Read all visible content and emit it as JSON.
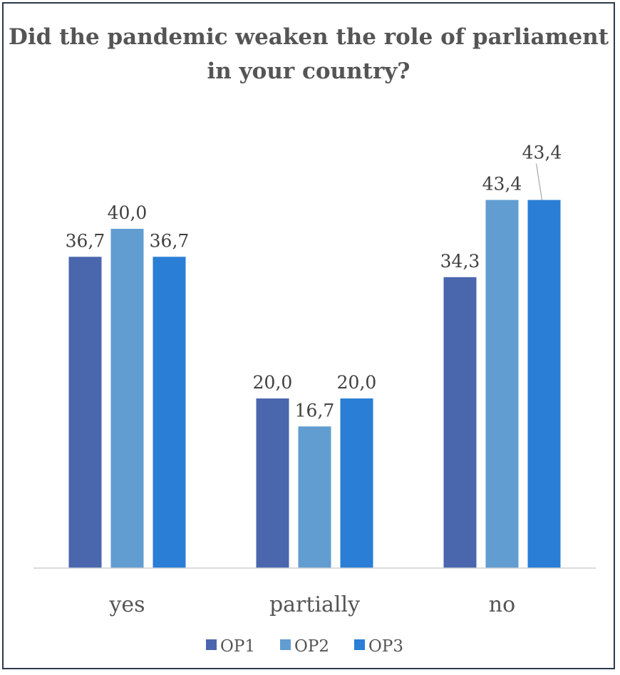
{
  "chart_data": {
    "type": "bar",
    "title": "Did the pandemic weaken the role of parliament in your country?",
    "categories": [
      "yes",
      "partially",
      "no"
    ],
    "series": [
      {
        "name": "OP1",
        "values": [
          36.7,
          20.0,
          34.3
        ],
        "labels": [
          "36,7",
          "20,0",
          "34,3"
        ],
        "color": "#4a66ad"
      },
      {
        "name": "OP2",
        "values": [
          40.0,
          16.7,
          43.4
        ],
        "labels": [
          "40,0",
          "16,7",
          "43,4"
        ],
        "color": "#619dd1"
      },
      {
        "name": "OP3",
        "values": [
          36.7,
          20.0,
          43.4
        ],
        "labels": [
          "36,7",
          "20,0",
          "43,4"
        ],
        "color": "#2a7ed6"
      }
    ],
    "ylim": [
      0,
      60
    ],
    "grid": false,
    "legend": "bottom",
    "xlabel": "",
    "ylabel": ""
  }
}
